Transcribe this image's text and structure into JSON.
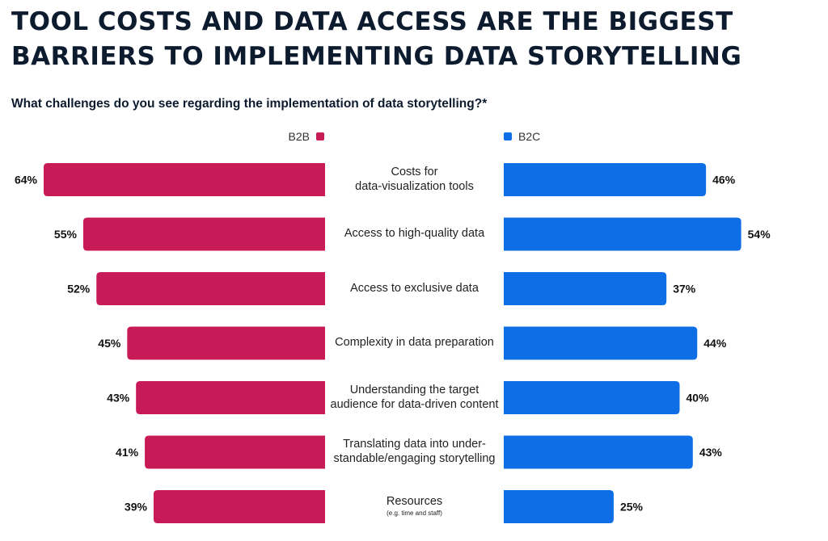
{
  "header": {
    "title": "TOOL COSTS AND DATA ACCESS ARE THE BIGGEST BARRIERS TO IMPLEMENTING DATA STORYTELLING",
    "question": "What challenges do you see regarding the implementation of data storytelling?*"
  },
  "colors": {
    "b2b": "#c81a56",
    "b2c": "#0d6ee6"
  },
  "chart_data": {
    "type": "bar",
    "orientation": "horizontal-butterfly",
    "title": "TOOL COSTS AND DATA ACCESS ARE THE BIGGEST BARRIERS TO IMPLEMENTING DATA STORYTELLING",
    "subtitle": "What challenges do you see regarding the implementation of data storytelling?*",
    "unit": "%",
    "categories": [
      {
        "line1": "Costs for",
        "line2": "data-visualization tools",
        "note": ""
      },
      {
        "line1": "Access to high-quality data",
        "line2": "",
        "note": ""
      },
      {
        "line1": "Access to exclusive data",
        "line2": "",
        "note": ""
      },
      {
        "line1": "Complexity in data preparation",
        "line2": "",
        "note": ""
      },
      {
        "line1": "Understanding the target",
        "line2": "audience for data-driven content",
        "note": ""
      },
      {
        "line1": "Translating data into under-",
        "line2": "standable/engaging storytelling",
        "note": ""
      },
      {
        "line1": "Resources",
        "line2": "",
        "note": "(e.g. time and staff)"
      }
    ],
    "series": [
      {
        "name": "B2B",
        "side": "left",
        "values": [
          64,
          55,
          52,
          45,
          43,
          41,
          39
        ]
      },
      {
        "name": "B2C",
        "side": "right",
        "values": [
          46,
          54,
          37,
          44,
          40,
          43,
          25
        ]
      }
    ],
    "legend_position": "top",
    "grid": false
  }
}
